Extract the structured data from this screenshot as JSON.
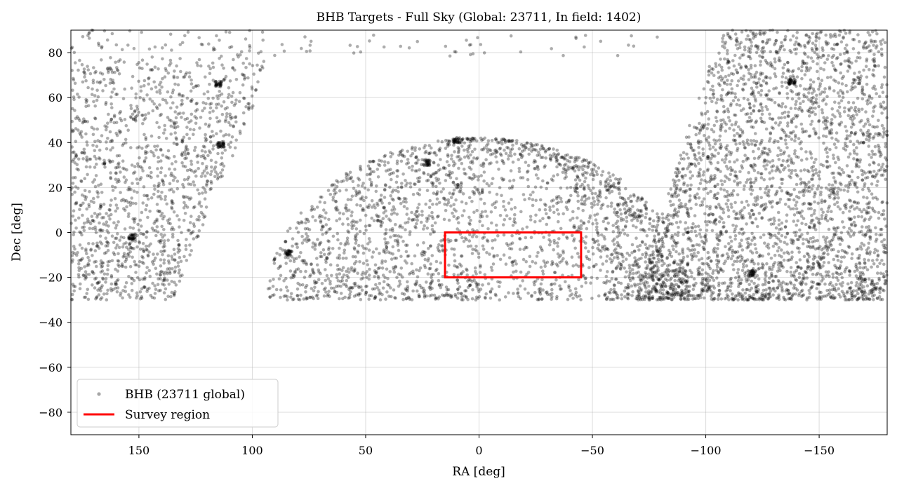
{
  "chart_data": {
    "type": "scatter",
    "title": "BHB Targets - Full Sky (Global: 23711, In field: 1402)",
    "xlabel": "RA [deg]",
    "ylabel": "Dec [deg]",
    "xlim": [
      180,
      -180
    ],
    "ylim": [
      -90,
      90
    ],
    "x_inverted": true,
    "x_ticks": [
      150,
      100,
      50,
      0,
      -50,
      -100,
      -150
    ],
    "x_tick_labels": [
      "150",
      "100",
      "50",
      "0",
      "−50",
      "−100",
      "−150"
    ],
    "y_ticks": [
      80,
      60,
      40,
      20,
      0,
      -20,
      -40,
      -60,
      -80
    ],
    "y_tick_labels": [
      "80",
      "60",
      "40",
      "20",
      "0",
      "−20",
      "−40",
      "−60",
      "−80"
    ],
    "grid": true,
    "legend_position": "lower-left",
    "series": [
      {
        "name": "BHB (23711 global)",
        "kind": "points",
        "color": "#000000",
        "alpha": 0.35,
        "count": 23711,
        "dec_min": -30,
        "regions": [
          {
            "ra_center": 0,
            "ra_halfwidth_at_min": 93,
            "ra_halfwidth_at_max": 25,
            "dec_max": 42,
            "density": "moderate"
          },
          {
            "ra_from": 180,
            "ra_to": 95,
            "dec_max": 90,
            "slope_edge": [
              [
                135,
                -30
              ],
              [
                98,
                60
              ]
            ],
            "density": "moderate"
          },
          {
            "ra_from": -68,
            "ra_to": -180,
            "dec_max": 90,
            "slope_edge": [
              [
                -68,
                -30
              ],
              [
                -100,
                70
              ]
            ],
            "density": "high"
          }
        ],
        "clumps": [
          {
            "ra": 10,
            "dec": 41
          },
          {
            "ra": 23,
            "dec": 31
          },
          {
            "ra": 153,
            "dec": -2
          },
          {
            "ra": 84,
            "dec": -9
          },
          {
            "ra": -138,
            "dec": 67
          },
          {
            "ra": -120,
            "dec": -18
          },
          {
            "ra": 115,
            "dec": 66
          },
          {
            "ra": 114,
            "dec": 39
          }
        ]
      },
      {
        "name": "Survey region",
        "kind": "rectangle",
        "color": "#ff0000",
        "ra": [
          15,
          -45
        ],
        "dec": [
          -20,
          0
        ]
      }
    ]
  }
}
